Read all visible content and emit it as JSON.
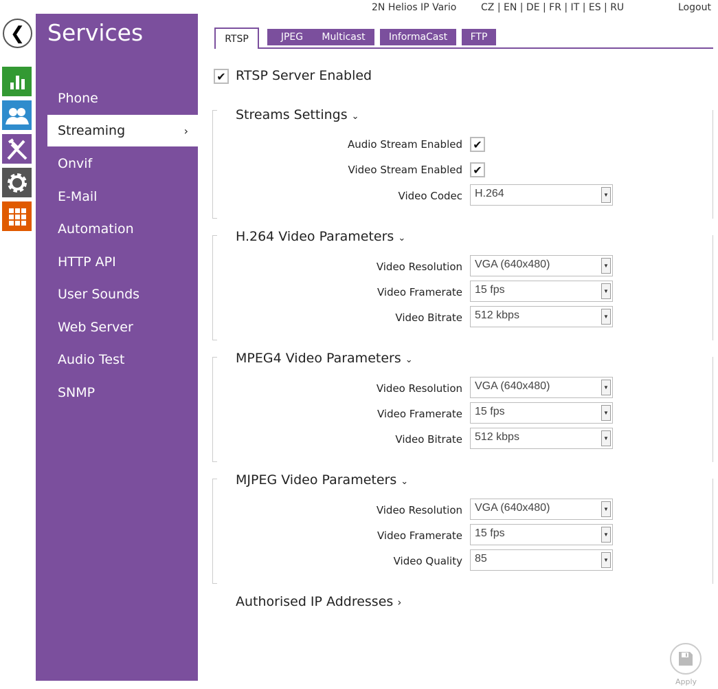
{
  "header": {
    "device": "2N Helios IP Vario",
    "languages": "CZ | EN | DE | FR | IT | ES | RU",
    "logout": "Logout"
  },
  "sidebar": {
    "title": "Services",
    "items": [
      {
        "label": "Phone"
      },
      {
        "label": "Streaming",
        "active": true
      },
      {
        "label": "Onvif"
      },
      {
        "label": "E-Mail"
      },
      {
        "label": "Automation"
      },
      {
        "label": "HTTP API"
      },
      {
        "label": "User Sounds"
      },
      {
        "label": "Web Server"
      },
      {
        "label": "Audio Test"
      },
      {
        "label": "SNMP"
      }
    ],
    "chevron": "›"
  },
  "iconbar": {
    "colors": {
      "status": "#339933",
      "users": "#2f8ccd",
      "tools": "#7b4f9d",
      "settings": "#555555",
      "apps": "#e05a00"
    }
  },
  "tabs": [
    "RTSP",
    "JPEG",
    "Multicast",
    "InformaCast",
    "FTP"
  ],
  "rtsp_enabled": {
    "label": "RTSP Server Enabled",
    "checked": true
  },
  "streams": {
    "title": "Streams Settings",
    "audio_label": "Audio Stream Enabled",
    "audio_checked": true,
    "video_label": "Video Stream Enabled",
    "video_checked": true,
    "codec_label": "Video Codec",
    "codec": "H.264"
  },
  "h264": {
    "title": "H.264 Video Parameters",
    "res_label": "Video Resolution",
    "res": "VGA (640x480)",
    "fps_label": "Video Framerate",
    "fps": "15 fps",
    "bitrate_label": "Video Bitrate",
    "bitrate": "512 kbps"
  },
  "mpeg4": {
    "title": "MPEG4 Video Parameters",
    "res_label": "Video Resolution",
    "res": "VGA (640x480)",
    "fps_label": "Video Framerate",
    "fps": "15 fps",
    "bitrate_label": "Video Bitrate",
    "bitrate": "512 kbps"
  },
  "mjpeg": {
    "title": "MJPEG Video Parameters",
    "res_label": "Video Resolution",
    "res": "VGA (640x480)",
    "fps_label": "Video Framerate",
    "fps": "15 fps",
    "quality_label": "Video Quality",
    "quality": "85"
  },
  "authorised": {
    "title": "Authorised IP Addresses"
  },
  "apply": {
    "label": "Apply"
  },
  "accent": "#7b4f9d"
}
